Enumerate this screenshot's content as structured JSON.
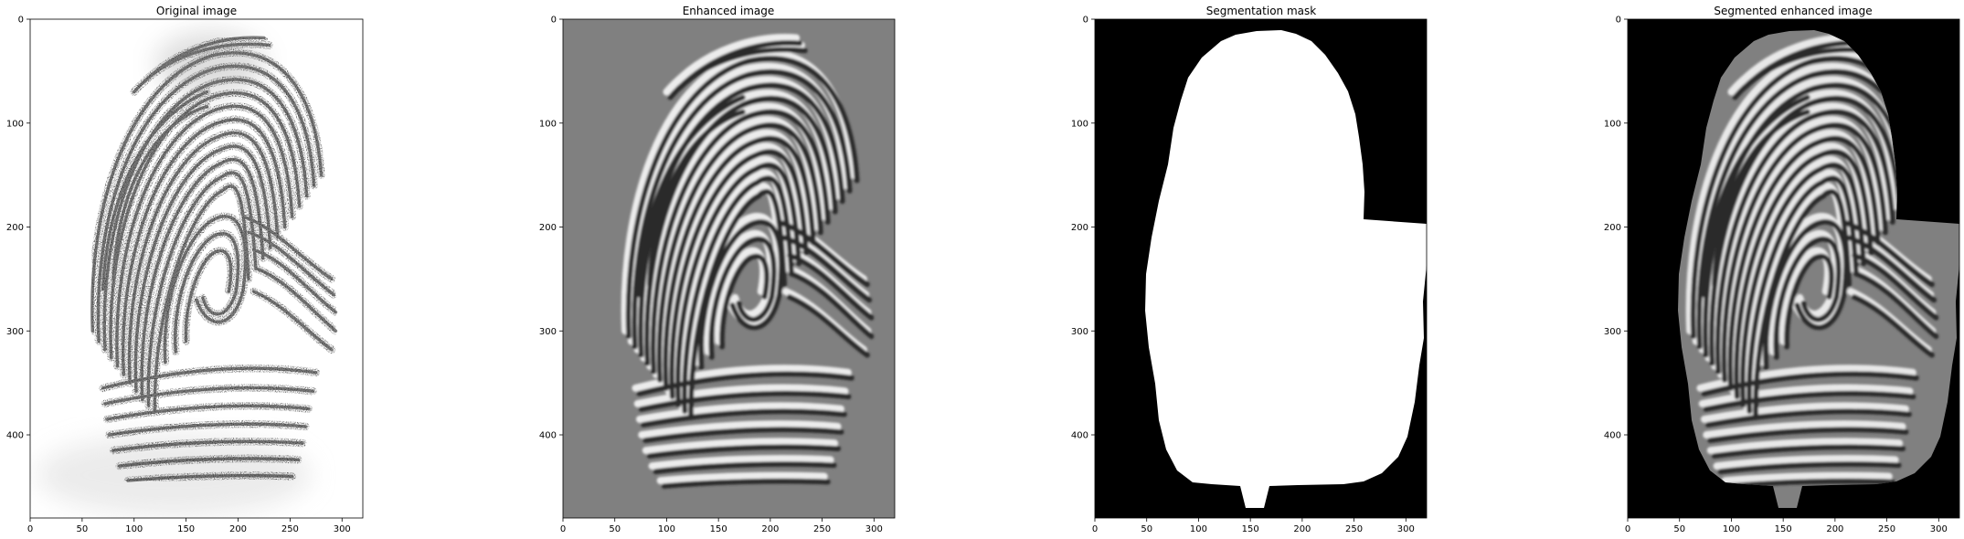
{
  "figure": {
    "background": "#ffffff"
  },
  "chart_data": [
    {
      "type": "image",
      "title": "Original image",
      "colormap": "gray",
      "image_content": "fingerprint: dark ridges on white background",
      "xlim": [
        0,
        320
      ],
      "ylim": [
        480,
        0
      ],
      "xticks": [
        0,
        50,
        100,
        150,
        200,
        250,
        300
      ],
      "yticks": [
        0,
        100,
        200,
        300,
        400
      ]
    },
    {
      "type": "image",
      "title": "Enhanced image",
      "colormap": "gray",
      "image_content": "filtered ridge pattern on mid-gray background",
      "xlim": [
        0,
        320
      ],
      "ylim": [
        480,
        0
      ],
      "xticks": [
        0,
        50,
        100,
        150,
        200,
        250,
        300
      ],
      "yticks": [
        0,
        100,
        200,
        300,
        400
      ]
    },
    {
      "type": "image",
      "title": "Segmentation mask",
      "colormap": "gray",
      "image_content": "white foreground region on black background",
      "xlim": [
        0,
        320
      ],
      "ylim": [
        480,
        0
      ],
      "xticks": [
        0,
        50,
        100,
        150,
        200,
        250,
        300
      ],
      "yticks": [
        0,
        100,
        200,
        300,
        400
      ]
    },
    {
      "type": "image",
      "title": "Segmented enhanced image",
      "colormap": "gray",
      "image_content": "enhanced ridges inside mask, black outside",
      "xlim": [
        0,
        320
      ],
      "ylim": [
        480,
        0
      ],
      "xticks": [
        0,
        50,
        100,
        150,
        200,
        250,
        300
      ],
      "yticks": [
        0,
        100,
        200,
        300,
        400
      ]
    }
  ],
  "colors": {
    "ridge_dark": "#161616",
    "paper_white": "#ffffff",
    "enhanced_gray": "#808080",
    "mask_black": "#000000",
    "mask_white": "#ffffff"
  }
}
